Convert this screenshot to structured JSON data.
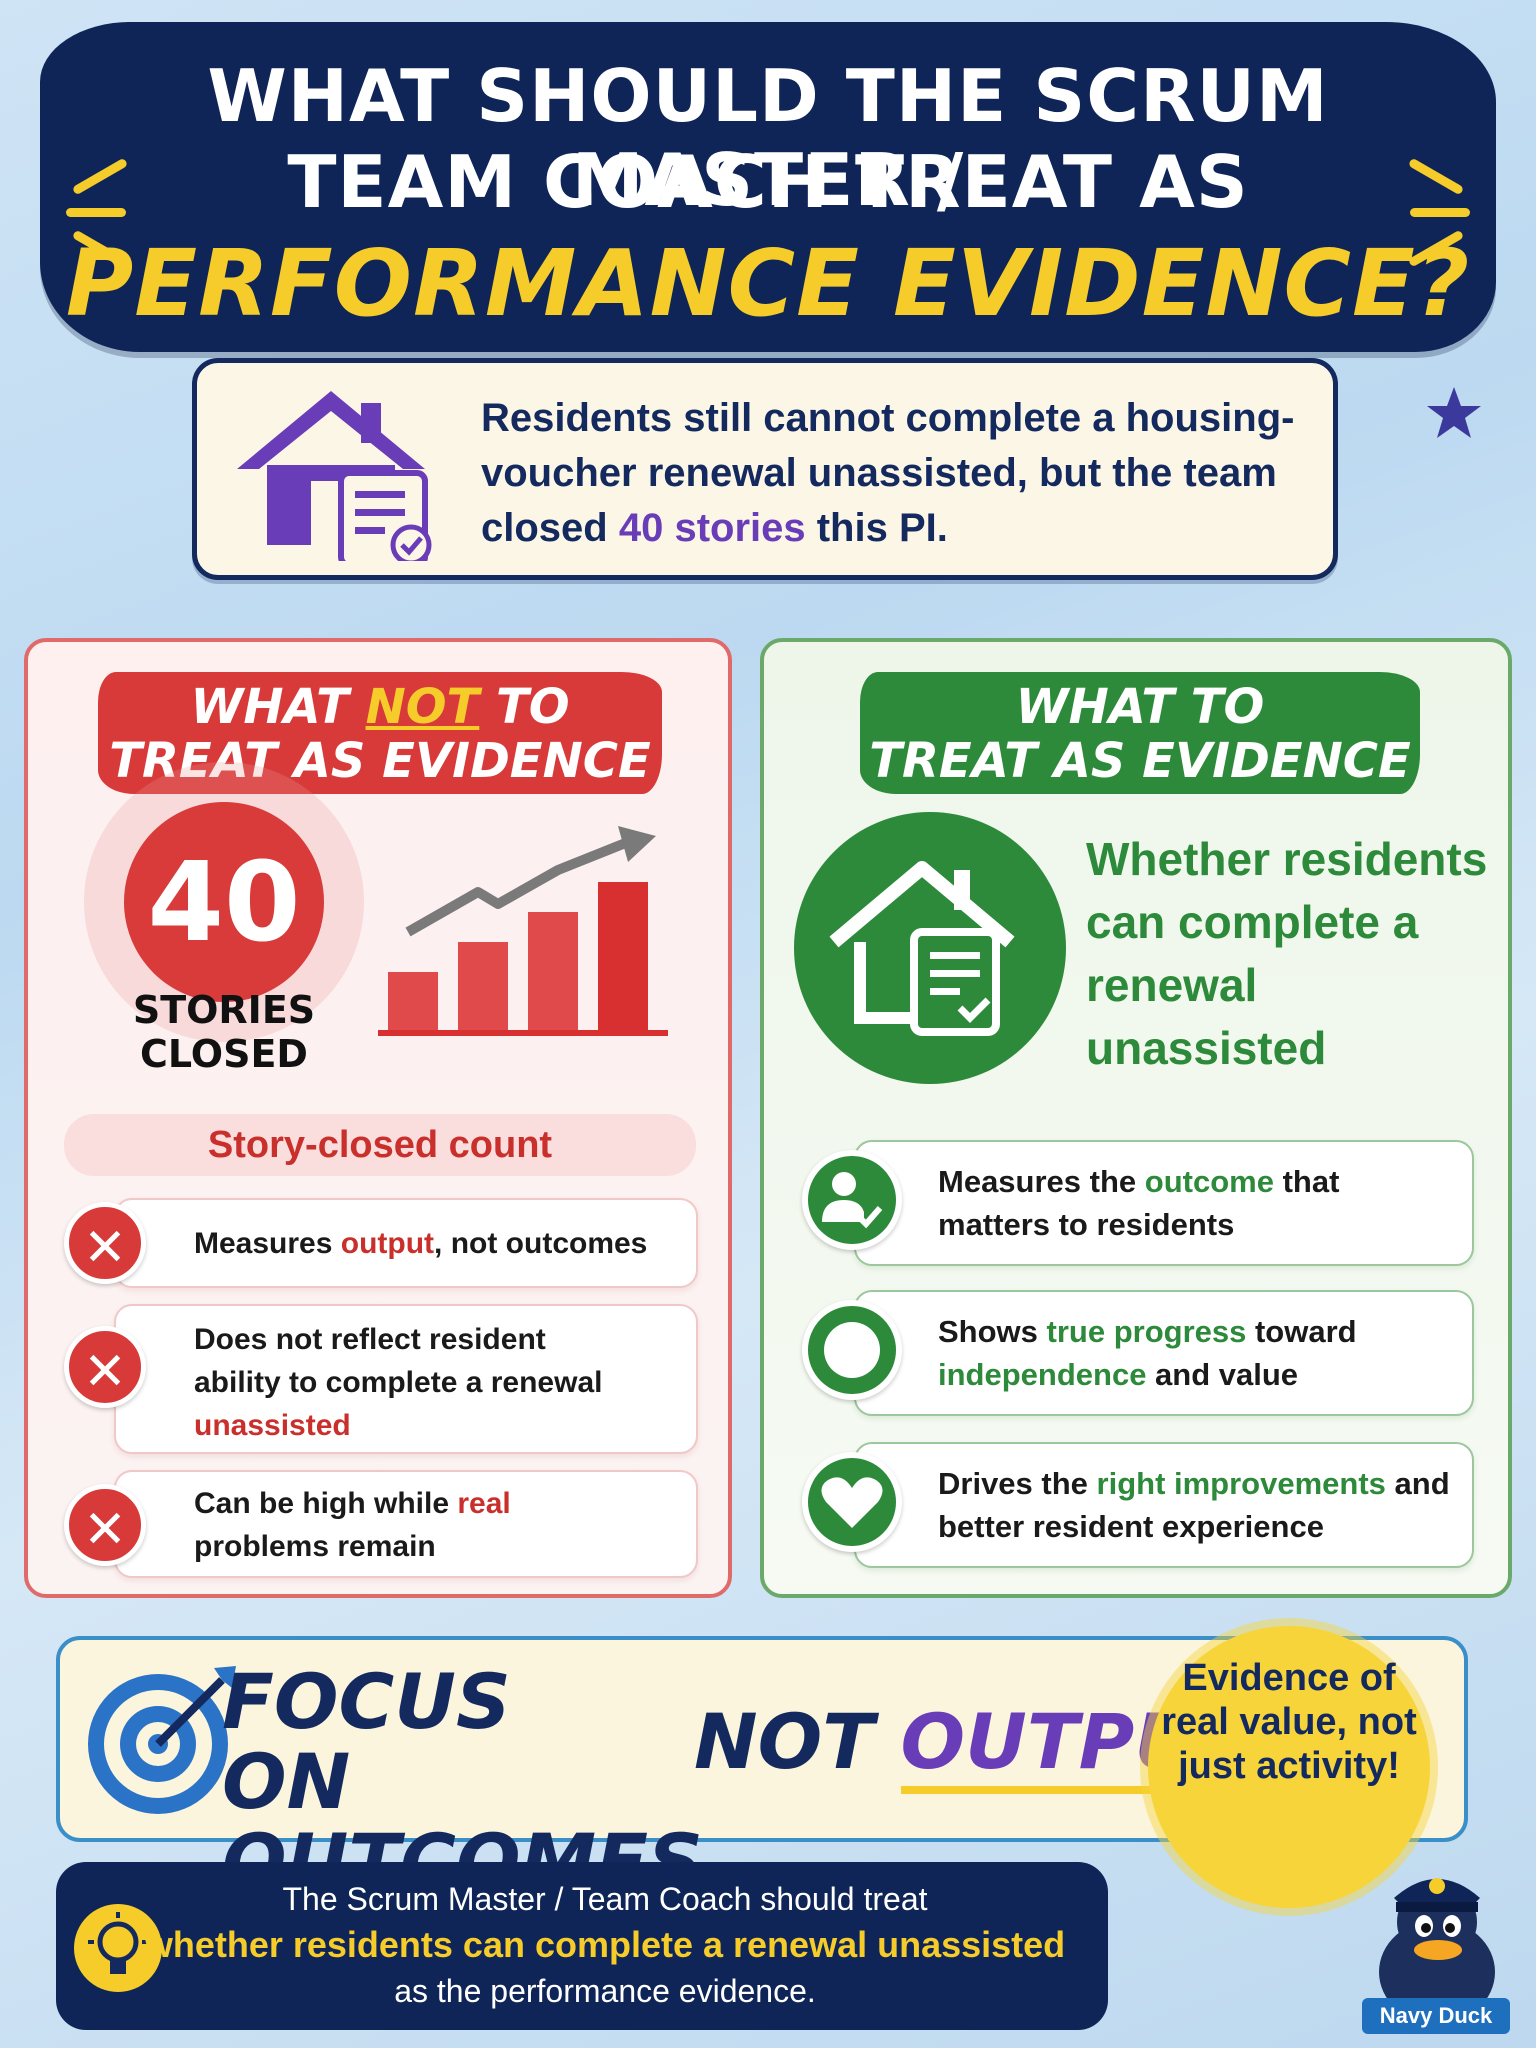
{
  "title": {
    "line1": "WHAT SHOULD THE SCRUM MASTER /",
    "line2": "TEAM COACH TREAT AS",
    "line3": "PERFORMANCE EVIDENCE?"
  },
  "situation": {
    "text_pre": "Residents still cannot complete a housing-voucher renewal unassisted, but the team closed ",
    "highlight": "40 stories",
    "text_post": " this PI."
  },
  "left_panel": {
    "heading_pre": "WHAT ",
    "heading_not": "NOT",
    "heading_post": " TO",
    "heading_line2": "TREAT AS EVIDENCE",
    "big_number": "40",
    "big_label_1": "STORIES",
    "big_label_2": "CLOSED",
    "pill": "Story-closed count",
    "items": [
      {
        "pre": "Measures ",
        "hl": "output",
        "post": ", not outcomes"
      },
      {
        "pre": "Does not reflect resident ability to complete a renewal ",
        "hl": "unassisted",
        "post": ""
      },
      {
        "pre": "Can be high while ",
        "hl": "real",
        "post": " problems remain"
      }
    ],
    "badge_symbol": "✕"
  },
  "right_panel": {
    "heading_line1": "WHAT TO",
    "heading_line2": "TREAT AS EVIDENCE",
    "main": "Whether residents can complete a renewal unassisted",
    "items": [
      {
        "pre": "Measures the ",
        "hl": "outcome",
        "post": " that matters to residents"
      },
      {
        "pre": "Shows ",
        "hl": "true progress",
        "mid": " toward ",
        "hl2": "independence",
        "post": " and value"
      },
      {
        "pre": "Drives the ",
        "hl": "right improvements",
        "post": " and better resident experience"
      }
    ]
  },
  "focus": {
    "line_a": "FOCUS ON OUTCOMES,",
    "not_word": "NOT ",
    "output_word": "OUTPUT.",
    "badge": "Evidence of real value, not just activity!"
  },
  "conclusion": {
    "line1": "The Scrum Master / Team Coach should treat",
    "line2": "whether residents can complete a renewal unassisted",
    "line3": "as the performance evidence."
  },
  "mascot": {
    "label": "Navy Duck"
  },
  "colors": {
    "navy": "#0f2557",
    "yellow": "#f5cc2a",
    "red": "#d83a3a",
    "green": "#2d8a3a",
    "purple": "#6a3db8"
  }
}
